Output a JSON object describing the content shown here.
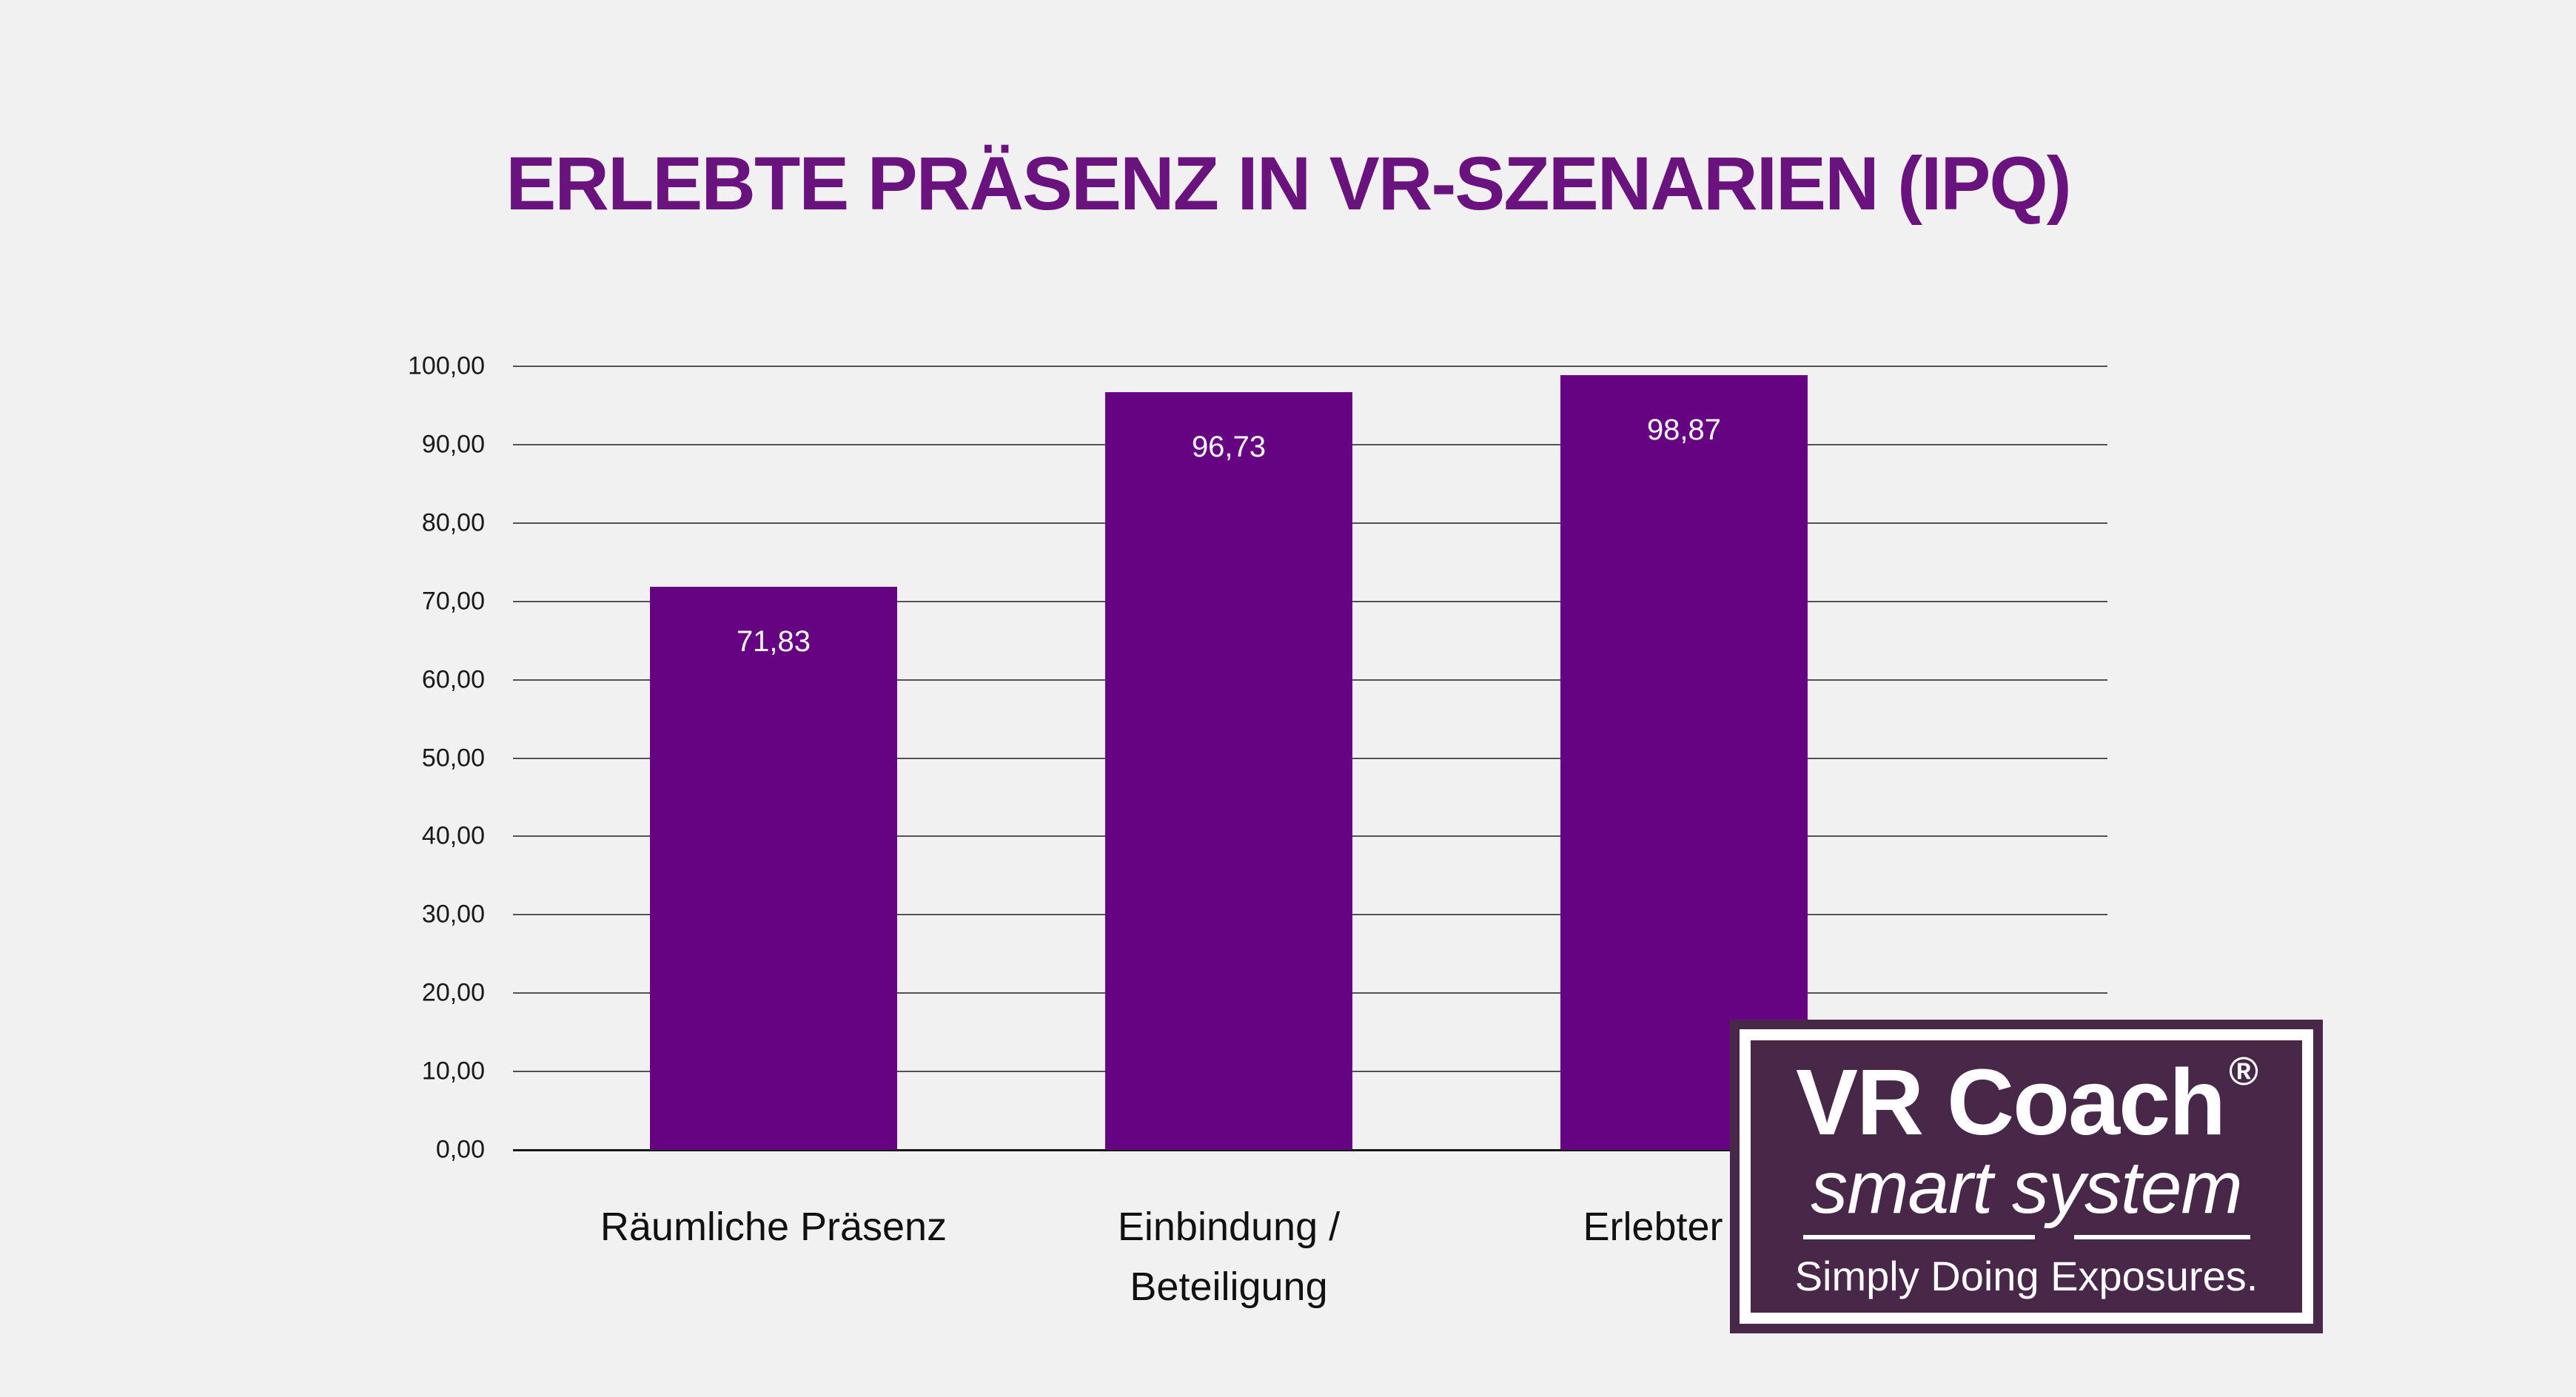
{
  "background_color": "#F2F1F2",
  "title": {
    "text": "ERLEBTE PRÄSENZ IN VR-SZENARIEN (IPQ)",
    "color": "#6A137F"
  },
  "chart_data": {
    "type": "bar",
    "title": "ERLEBTE PRÄSENZ IN VR-SZENARIEN (IPQ)",
    "categories": [
      "Räumliche Präsenz",
      "Einbindung / Beteiligung",
      "Erlebter Re"
    ],
    "values": [
      71.83,
      96.73,
      98.87
    ],
    "bar_value_labels": [
      "71,83",
      "96,73",
      "98,87"
    ],
    "ylim": [
      0,
      100
    ],
    "ytick_step": 10,
    "ytick_labels": [
      "0,00",
      "10,00",
      "20,00",
      "30,00",
      "40,00",
      "50,00",
      "60,00",
      "70,00",
      "80,00",
      "90,00",
      "100,00"
    ],
    "grid": true,
    "legend": false,
    "bar_color": "#650382",
    "bar_label_color": "#FFFFFF",
    "axis_text_color": "#1A1A1A",
    "gridline_color": "#525252",
    "baseline_color": "#171717"
  },
  "logo": {
    "brand": "VR Coach",
    "registered_mark": "®",
    "product": "smart system",
    "tagline": "Simply Doing Exposures.",
    "background_color": "#482849",
    "text_color": "#FFFFFF"
  }
}
